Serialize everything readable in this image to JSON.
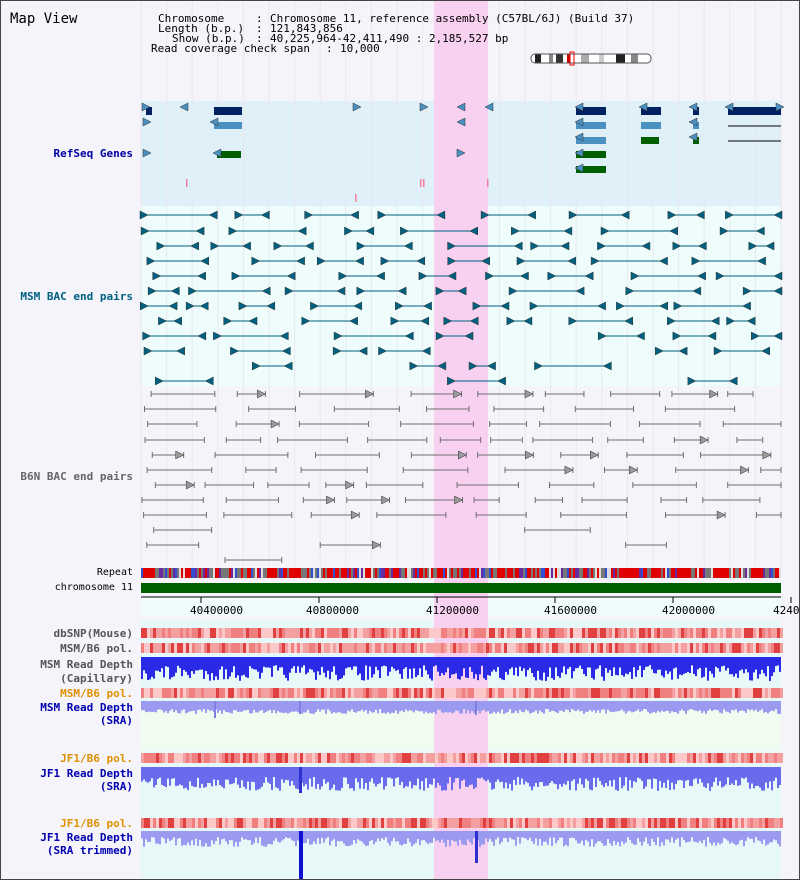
{
  "window": {
    "title": "Map View"
  },
  "info": {
    "chromosome_key": "Chromosome",
    "chromosome_val": "Chromosome 11, reference assembly (C57BL/6J) (Build 37)",
    "length_key": "Length (b.p.)",
    "length_val": "121,843,856",
    "show_key": "Show (b.p.)",
    "show_val": "40,225,964-42,411,490 : 2,185,527 bp",
    "span_key": "Read coverage check span",
    "span_val": "10,000"
  },
  "tracks": {
    "refseq": "RefSeq Genes",
    "msm_bac": "MSM BAC end pairs",
    "b6n_bac": "B6N BAC end pairs",
    "repeat": "Repeat",
    "chromosome": "chromosome 11",
    "dbsnp": "dbSNP(Mouse)",
    "msm_b6_pol_1": "MSM/B6 pol.",
    "msm_depth_cap_1": "MSM Read Depth",
    "msm_depth_cap_2": "(Capillary)",
    "msm_b6_pol_2": "MSM/B6 pol.",
    "msm_depth_sra_1": "MSM Read Depth",
    "msm_depth_sra_2": "(SRA)",
    "jf1_b6_pol_1": "JF1/B6 pol.",
    "jf1_depth_sra_1": "JF1 Read Depth",
    "jf1_depth_sra_2": "(SRA)",
    "jf1_b6_pol_2": "JF1/B6 pol.",
    "jf1_depth_trim_1": "JF1 Read Depth",
    "jf1_depth_trim_2": "(SRA trimmed)"
  },
  "axis": {
    "ticks": [
      "40400000",
      "40800000",
      "41200000",
      "41600000",
      "42000000",
      "4240"
    ]
  },
  "colors": {
    "refseq_label": "#0000a0",
    "msm_label": "#006080",
    "b6n_label": "#666666",
    "orange_label": "#e09000",
    "blue_label": "#0000b0",
    "highlight": "#f8d0f0",
    "gene_dark": "#002060",
    "gene_mid": "#4a90c0",
    "gene_green": "#006000",
    "msm_pair": "#006080",
    "b6n_pair": "#707070",
    "chrom_bar": "#006000"
  }
}
